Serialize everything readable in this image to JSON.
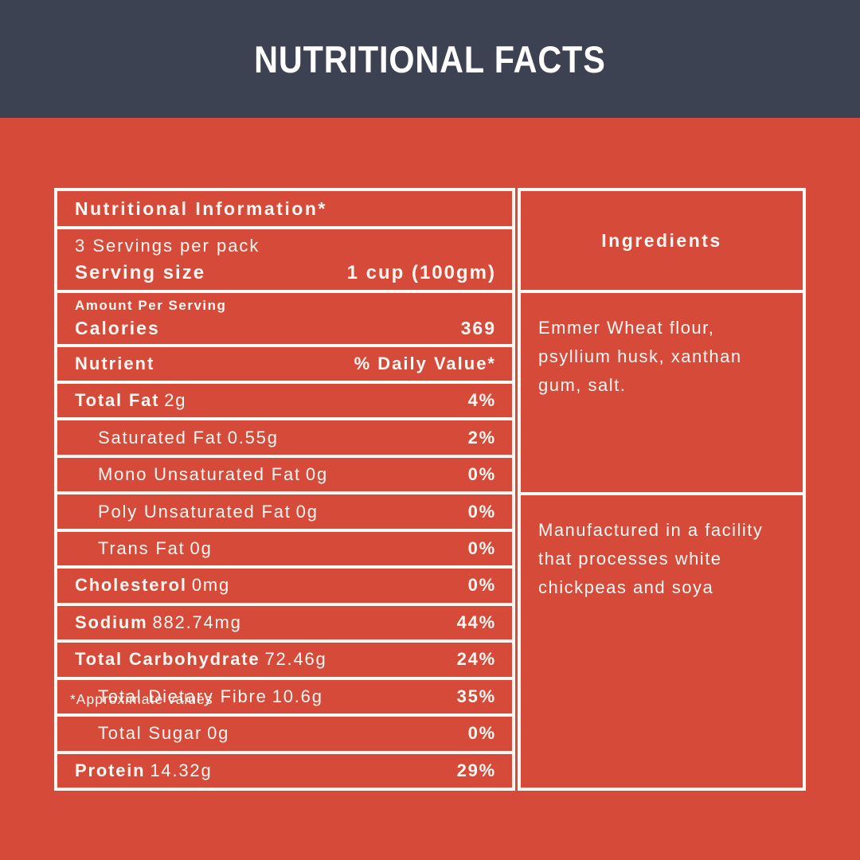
{
  "header": {
    "title": "NUTRITIONAL FACTS"
  },
  "colors": {
    "background_red": "#d64a3a",
    "header_dark": "#3d4252",
    "border_and_text": "#fbf8f4"
  },
  "table": {
    "title": "Nutritional Information*",
    "servings_line": "3 Servings per pack",
    "serving_size_label": "Serving size",
    "serving_size_value": "1 cup (100gm)",
    "amount_per_serving_label": "Amount Per Serving",
    "calories_label": "Calories",
    "calories_value": "369",
    "nutrient_col_label": "Nutrient",
    "daily_value_col_label": "% Daily Value*",
    "rows": [
      {
        "name": "Total Fat",
        "amount": "2g",
        "dv": "4%",
        "bold": true,
        "indent": false
      },
      {
        "name": "Saturated Fat",
        "amount": "0.55g",
        "dv": "2%",
        "bold": false,
        "indent": true
      },
      {
        "name": "Mono Unsaturated Fat",
        "amount": "0g",
        "dv": "0%",
        "bold": false,
        "indent": true
      },
      {
        "name": "Poly Unsaturated Fat",
        "amount": "0g",
        "dv": "0%",
        "bold": false,
        "indent": true
      },
      {
        "name": "Trans Fat",
        "amount": "0g",
        "dv": "0%",
        "bold": false,
        "indent": true
      },
      {
        "name": "Cholesterol",
        "amount": "0mg",
        "dv": "0%",
        "bold": true,
        "indent": false
      },
      {
        "name": "Sodium",
        "amount": "882.74mg",
        "dv": "44%",
        "bold": true,
        "indent": false
      },
      {
        "name": "Total Carbohydrate",
        "amount": "72.46g",
        "dv": "24%",
        "bold": true,
        "indent": false
      },
      {
        "name": "Total Dietary Fibre",
        "amount": "10.6g",
        "dv": "35%",
        "bold": false,
        "indent": true
      },
      {
        "name": "Total Sugar",
        "amount": "0g",
        "dv": "0%",
        "bold": false,
        "indent": true
      },
      {
        "name": "Protein",
        "amount": "14.32g",
        "dv": "29%",
        "bold": true,
        "indent": false
      }
    ],
    "footnote": "*Approximate values"
  },
  "ingredients": {
    "title": "Ingredients",
    "list": "Emmer Wheat flour, psyllium husk, xanthan gum, salt.",
    "allergen_note": "Manufactured in a facility that processes white chickpeas and soya"
  }
}
